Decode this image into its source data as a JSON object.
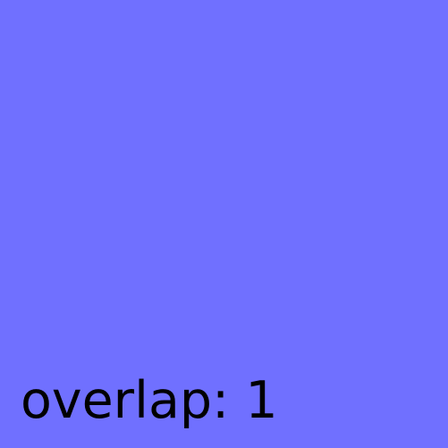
{
  "background": {
    "color": "#7070ff"
  },
  "label": {
    "text": "overlap: 1",
    "color": "#000000"
  }
}
